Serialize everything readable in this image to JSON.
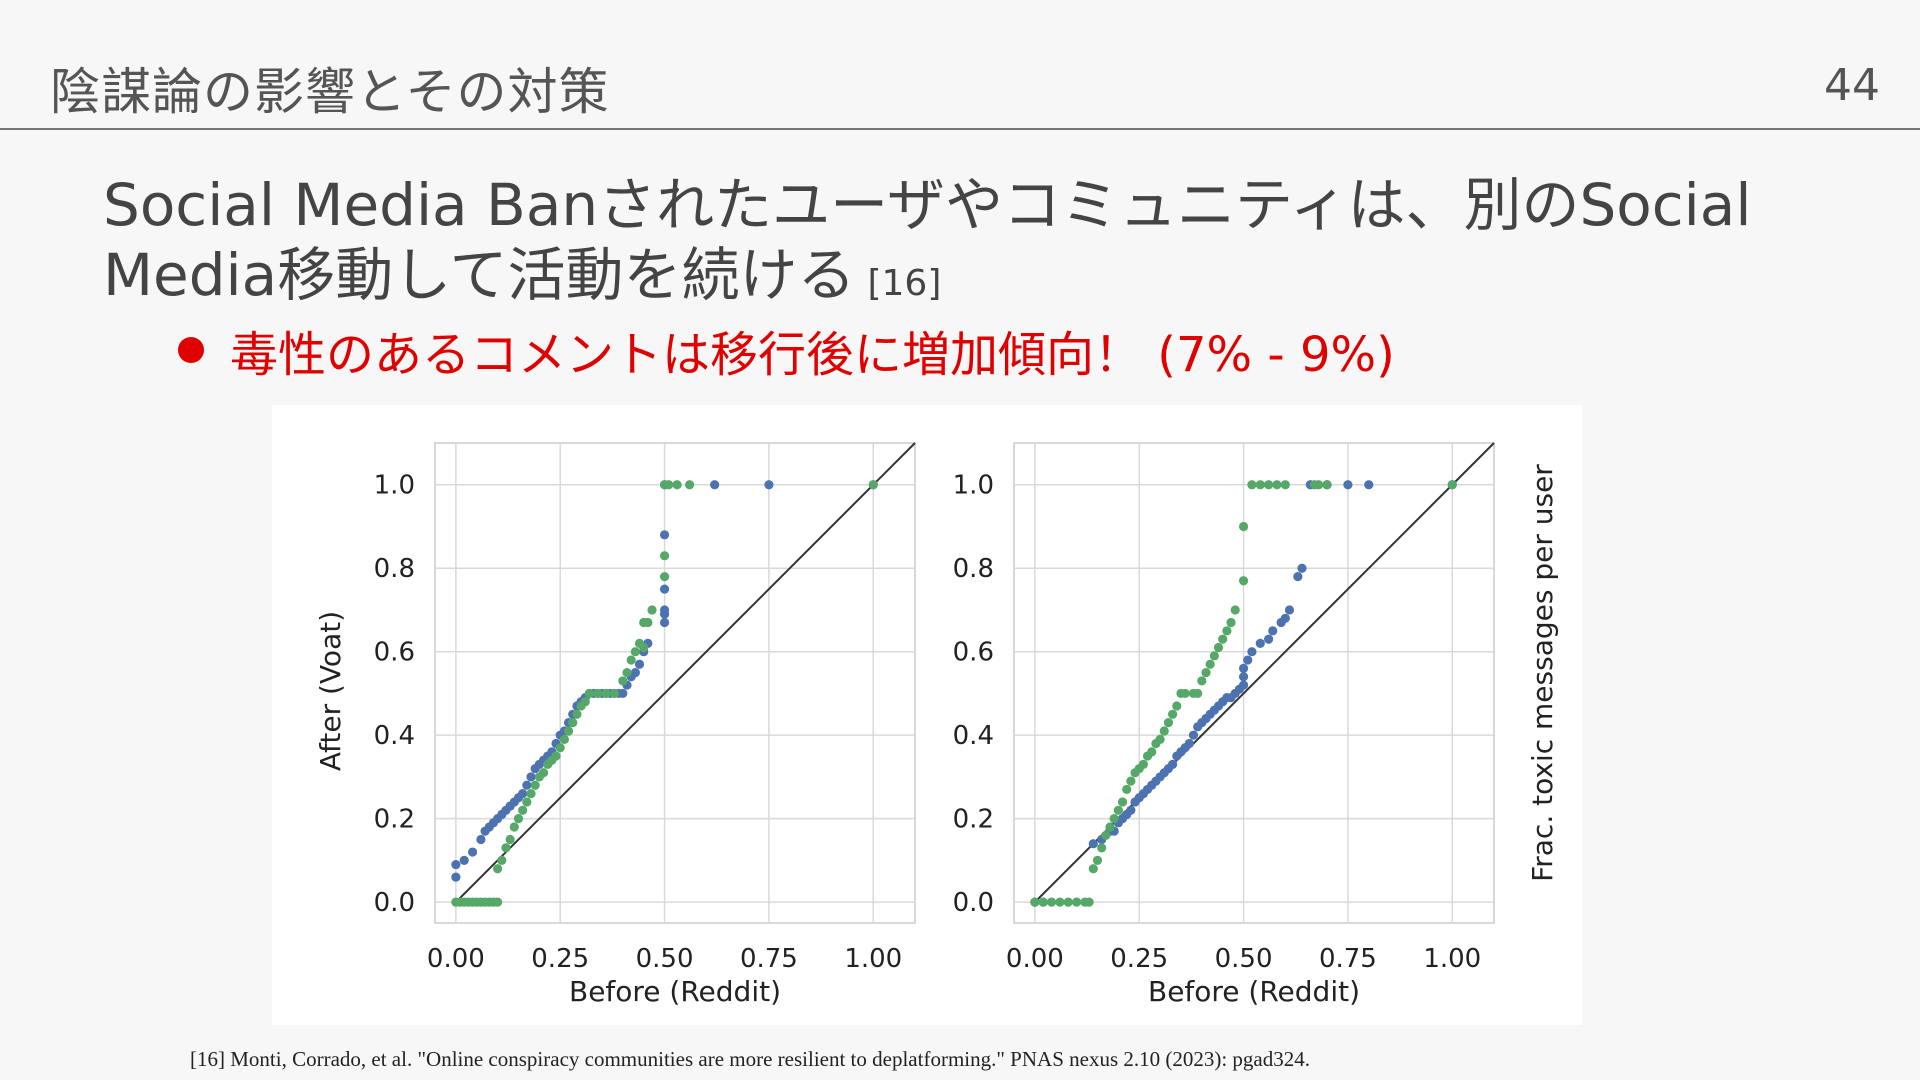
{
  "header": {
    "title": "陰謀論の影響とその対策",
    "page_number": "44"
  },
  "headline": {
    "text": "Social Media Banされたユーザやコミュニティは、別のSocial Media移動して活動を続ける",
    "ref": "[16]"
  },
  "bullet": {
    "text": "毒性のあるコメントは移行後に増加傾向！ (7% - 9%)",
    "color": "#e00000"
  },
  "footnote": "[16] Monti, Corrado, et al. \"Online conspiracy communities are more resilient to deplatforming.\" PNAS nexus 2.10 (2023): pgad324.",
  "colors": {
    "blue": "#4c72b0",
    "green": "#55a868",
    "diagonal": "#333333",
    "grid": "#d9d9d9"
  },
  "chart_data": [
    {
      "type": "scatter",
      "xlabel": "Before (Reddit)",
      "ylabel": "After (Voat)",
      "xlim": [
        -0.05,
        1.1
      ],
      "ylim": [
        -0.05,
        1.1
      ],
      "xticks": [
        "0.00",
        "0.25",
        "0.50",
        "0.75",
        "1.00"
      ],
      "yticks": [
        "0.0",
        "0.2",
        "0.4",
        "0.6",
        "0.8",
        "1.0"
      ],
      "grid": true,
      "reference_line": "y = x",
      "series": [
        {
          "color": "#4c72b0",
          "points": [
            [
              0.0,
              0.06
            ],
            [
              0.0,
              0.09
            ],
            [
              0.02,
              0.1
            ],
            [
              0.04,
              0.12
            ],
            [
              0.06,
              0.15
            ],
            [
              0.07,
              0.17
            ],
            [
              0.08,
              0.18
            ],
            [
              0.09,
              0.19
            ],
            [
              0.1,
              0.2
            ],
            [
              0.11,
              0.21
            ],
            [
              0.12,
              0.22
            ],
            [
              0.13,
              0.23
            ],
            [
              0.14,
              0.24
            ],
            [
              0.15,
              0.25
            ],
            [
              0.16,
              0.26
            ],
            [
              0.17,
              0.28
            ],
            [
              0.18,
              0.3
            ],
            [
              0.19,
              0.32
            ],
            [
              0.2,
              0.33
            ],
            [
              0.21,
              0.34
            ],
            [
              0.22,
              0.35
            ],
            [
              0.23,
              0.36
            ],
            [
              0.24,
              0.38
            ],
            [
              0.25,
              0.4
            ],
            [
              0.26,
              0.41
            ],
            [
              0.27,
              0.43
            ],
            [
              0.28,
              0.45
            ],
            [
              0.29,
              0.47
            ],
            [
              0.3,
              0.48
            ],
            [
              0.31,
              0.49
            ],
            [
              0.32,
              0.5
            ],
            [
              0.33,
              0.5
            ],
            [
              0.34,
              0.5
            ],
            [
              0.35,
              0.5
            ],
            [
              0.36,
              0.5
            ],
            [
              0.37,
              0.5
            ],
            [
              0.38,
              0.5
            ],
            [
              0.39,
              0.5
            ],
            [
              0.4,
              0.5
            ],
            [
              0.41,
              0.52
            ],
            [
              0.42,
              0.54
            ],
            [
              0.43,
              0.55
            ],
            [
              0.44,
              0.57
            ],
            [
              0.45,
              0.6
            ],
            [
              0.46,
              0.62
            ],
            [
              0.5,
              0.67
            ],
            [
              0.5,
              0.69
            ],
            [
              0.5,
              0.7
            ],
            [
              0.5,
              0.75
            ],
            [
              0.5,
              0.88
            ],
            [
              0.5,
              1.0
            ],
            [
              0.62,
              1.0
            ],
            [
              0.75,
              1.0
            ],
            [
              1.0,
              1.0
            ]
          ]
        },
        {
          "color": "#55a868",
          "points": [
            [
              0.0,
              0.0
            ],
            [
              0.01,
              0.0
            ],
            [
              0.02,
              0.0
            ],
            [
              0.03,
              0.0
            ],
            [
              0.04,
              0.0
            ],
            [
              0.05,
              0.0
            ],
            [
              0.06,
              0.0
            ],
            [
              0.07,
              0.0
            ],
            [
              0.08,
              0.0
            ],
            [
              0.09,
              0.0
            ],
            [
              0.1,
              0.0
            ],
            [
              0.1,
              0.08
            ],
            [
              0.11,
              0.1
            ],
            [
              0.12,
              0.13
            ],
            [
              0.13,
              0.15
            ],
            [
              0.14,
              0.18
            ],
            [
              0.15,
              0.2
            ],
            [
              0.16,
              0.22
            ],
            [
              0.17,
              0.24
            ],
            [
              0.18,
              0.26
            ],
            [
              0.19,
              0.28
            ],
            [
              0.2,
              0.3
            ],
            [
              0.21,
              0.31
            ],
            [
              0.22,
              0.33
            ],
            [
              0.23,
              0.34
            ],
            [
              0.24,
              0.35
            ],
            [
              0.25,
              0.37
            ],
            [
              0.26,
              0.39
            ],
            [
              0.27,
              0.41
            ],
            [
              0.28,
              0.43
            ],
            [
              0.29,
              0.45
            ],
            [
              0.3,
              0.47
            ],
            [
              0.31,
              0.48
            ],
            [
              0.32,
              0.5
            ],
            [
              0.34,
              0.5
            ],
            [
              0.36,
              0.5
            ],
            [
              0.38,
              0.5
            ],
            [
              0.4,
              0.53
            ],
            [
              0.41,
              0.55
            ],
            [
              0.42,
              0.58
            ],
            [
              0.43,
              0.6
            ],
            [
              0.45,
              0.61
            ],
            [
              0.44,
              0.62
            ],
            [
              0.45,
              0.67
            ],
            [
              0.46,
              0.67
            ],
            [
              0.47,
              0.7
            ],
            [
              0.5,
              0.78
            ],
            [
              0.5,
              0.83
            ],
            [
              0.5,
              1.0
            ],
            [
              0.51,
              1.0
            ],
            [
              0.53,
              1.0
            ],
            [
              0.56,
              1.0
            ],
            [
              1.0,
              1.0
            ]
          ]
        }
      ]
    },
    {
      "type": "scatter",
      "xlabel": "Before (Reddit)",
      "ylabel": "Frac. toxic messages per user",
      "xlim": [
        -0.05,
        1.1
      ],
      "ylim": [
        -0.05,
        1.1
      ],
      "xticks": [
        "0.00",
        "0.25",
        "0.50",
        "0.75",
        "1.00"
      ],
      "yticks": [
        "0.0",
        "0.2",
        "0.4",
        "0.6",
        "0.8",
        "1.0"
      ],
      "grid": true,
      "reference_line": "y = x",
      "series": [
        {
          "color": "#4c72b0",
          "points": [
            [
              0.0,
              0.0
            ],
            [
              0.02,
              0.0
            ],
            [
              0.14,
              0.14
            ],
            [
              0.16,
              0.15
            ],
            [
              0.18,
              0.17
            ],
            [
              0.19,
              0.17
            ],
            [
              0.2,
              0.19
            ],
            [
              0.21,
              0.2
            ],
            [
              0.22,
              0.21
            ],
            [
              0.23,
              0.22
            ],
            [
              0.24,
              0.24
            ],
            [
              0.25,
              0.25
            ],
            [
              0.26,
              0.26
            ],
            [
              0.27,
              0.27
            ],
            [
              0.28,
              0.28
            ],
            [
              0.29,
              0.29
            ],
            [
              0.3,
              0.3
            ],
            [
              0.31,
              0.31
            ],
            [
              0.32,
              0.32
            ],
            [
              0.33,
              0.33
            ],
            [
              0.34,
              0.35
            ],
            [
              0.35,
              0.36
            ],
            [
              0.36,
              0.37
            ],
            [
              0.37,
              0.38
            ],
            [
              0.38,
              0.4
            ],
            [
              0.39,
              0.42
            ],
            [
              0.4,
              0.43
            ],
            [
              0.41,
              0.44
            ],
            [
              0.42,
              0.45
            ],
            [
              0.43,
              0.46
            ],
            [
              0.44,
              0.47
            ],
            [
              0.45,
              0.48
            ],
            [
              0.46,
              0.49
            ],
            [
              0.47,
              0.49
            ],
            [
              0.48,
              0.5
            ],
            [
              0.49,
              0.51
            ],
            [
              0.5,
              0.52
            ],
            [
              0.5,
              0.54
            ],
            [
              0.5,
              0.56
            ],
            [
              0.51,
              0.58
            ],
            [
              0.52,
              0.6
            ],
            [
              0.54,
              0.62
            ],
            [
              0.56,
              0.63
            ],
            [
              0.57,
              0.65
            ],
            [
              0.59,
              0.67
            ],
            [
              0.6,
              0.68
            ],
            [
              0.61,
              0.7
            ],
            [
              0.63,
              0.78
            ],
            [
              0.64,
              0.8
            ],
            [
              0.66,
              1.0
            ],
            [
              0.7,
              1.0
            ],
            [
              0.75,
              1.0
            ],
            [
              0.8,
              1.0
            ],
            [
              1.0,
              1.0
            ]
          ]
        },
        {
          "color": "#55a868",
          "points": [
            [
              0.0,
              0.0
            ],
            [
              0.02,
              0.0
            ],
            [
              0.04,
              0.0
            ],
            [
              0.06,
              0.0
            ],
            [
              0.08,
              0.0
            ],
            [
              0.1,
              0.0
            ],
            [
              0.12,
              0.0
            ],
            [
              0.13,
              0.0
            ],
            [
              0.14,
              0.08
            ],
            [
              0.15,
              0.1
            ],
            [
              0.16,
              0.13
            ],
            [
              0.17,
              0.16
            ],
            [
              0.18,
              0.18
            ],
            [
              0.19,
              0.2
            ],
            [
              0.2,
              0.22
            ],
            [
              0.21,
              0.24
            ],
            [
              0.22,
              0.27
            ],
            [
              0.23,
              0.29
            ],
            [
              0.24,
              0.31
            ],
            [
              0.25,
              0.32
            ],
            [
              0.26,
              0.33
            ],
            [
              0.27,
              0.35
            ],
            [
              0.28,
              0.36
            ],
            [
              0.29,
              0.38
            ],
            [
              0.3,
              0.39
            ],
            [
              0.31,
              0.41
            ],
            [
              0.32,
              0.43
            ],
            [
              0.33,
              0.45
            ],
            [
              0.34,
              0.47
            ],
            [
              0.35,
              0.5
            ],
            [
              0.36,
              0.5
            ],
            [
              0.38,
              0.5
            ],
            [
              0.39,
              0.5
            ],
            [
              0.4,
              0.53
            ],
            [
              0.41,
              0.55
            ],
            [
              0.42,
              0.57
            ],
            [
              0.43,
              0.59
            ],
            [
              0.44,
              0.61
            ],
            [
              0.45,
              0.63
            ],
            [
              0.46,
              0.65
            ],
            [
              0.47,
              0.67
            ],
            [
              0.48,
              0.7
            ],
            [
              0.5,
              0.77
            ],
            [
              0.5,
              0.9
            ],
            [
              0.52,
              1.0
            ],
            [
              0.54,
              1.0
            ],
            [
              0.56,
              1.0
            ],
            [
              0.58,
              1.0
            ],
            [
              0.6,
              1.0
            ],
            [
              0.67,
              1.0
            ],
            [
              0.68,
              1.0
            ],
            [
              0.7,
              1.0
            ],
            [
              1.0,
              1.0
            ]
          ]
        }
      ]
    }
  ]
}
